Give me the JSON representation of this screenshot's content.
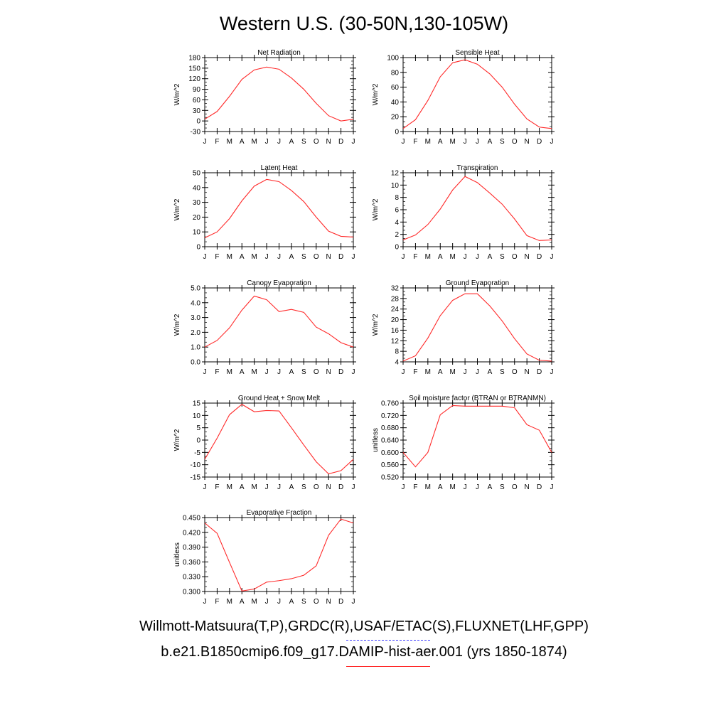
{
  "title": "Western U.S. (30-50N,130-105W)",
  "legend": {
    "obs_label": "Willmott-Matsuura(T,P),GRDC(R),USAF/ETAC(S),FLUXNET(LHF,GPP)",
    "model_label": "b.e21.B1850cmip6.f09_g17.DAMIP-hist-aer.001 (yrs 1850-1874)",
    "obs_color": "#3a3aff",
    "model_color": "#ff2a2a"
  },
  "chart_data": [
    {
      "type": "line",
      "title": "Net Radiation",
      "ylabel": "W/m^2",
      "categories": [
        "J",
        "F",
        "M",
        "A",
        "M",
        "J",
        "J",
        "A",
        "S",
        "O",
        "N",
        "D",
        "J"
      ],
      "ylim": [
        -30,
        180
      ],
      "yticks": [
        "-30",
        "0",
        "30",
        "60",
        "90",
        "120",
        "150",
        "180"
      ],
      "series": [
        {
          "values": [
            5,
            27,
            70,
            118,
            145,
            153,
            147,
            122,
            90,
            50,
            15,
            0,
            5
          ]
        }
      ]
    },
    {
      "type": "line",
      "title": "Sensible Heat",
      "ylabel": "W/m^2",
      "categories": [
        "J",
        "F",
        "M",
        "A",
        "M",
        "J",
        "J",
        "A",
        "S",
        "O",
        "N",
        "D",
        "J"
      ],
      "ylim": [
        0,
        100
      ],
      "yticks": [
        "0",
        "20",
        "40",
        "60",
        "80",
        "100"
      ],
      "series": [
        {
          "values": [
            4,
            16,
            42,
            74,
            93,
            97,
            91,
            78,
            60,
            37,
            17,
            6,
            4
          ]
        }
      ]
    },
    {
      "type": "line",
      "title": "Latent Heat",
      "ylabel": "W/m^2",
      "categories": [
        "J",
        "F",
        "M",
        "A",
        "M",
        "J",
        "J",
        "A",
        "S",
        "O",
        "N",
        "D",
        "J"
      ],
      "ylim": [
        0,
        50
      ],
      "yticks": [
        "0",
        "10",
        "20",
        "30",
        "40",
        "50"
      ],
      "series": [
        {
          "values": [
            6,
            10,
            19,
            31,
            41,
            45.5,
            44,
            38,
            30.5,
            20,
            10.5,
            7,
            6.5
          ]
        }
      ]
    },
    {
      "type": "line",
      "title": "Transpiration",
      "ylabel": "W/m^2",
      "categories": [
        "J",
        "F",
        "M",
        "A",
        "M",
        "J",
        "J",
        "A",
        "S",
        "O",
        "N",
        "D",
        "J"
      ],
      "ylim": [
        0,
        12
      ],
      "yticks": [
        "0",
        "2",
        "4",
        "6",
        "8",
        "10",
        "12"
      ],
      "series": [
        {
          "values": [
            1.1,
            1.9,
            3.6,
            6.1,
            9.2,
            11.4,
            10.4,
            8.7,
            6.9,
            4.5,
            1.8,
            1.0,
            1.1
          ]
        }
      ]
    },
    {
      "type": "line",
      "title": "Canopy Evaporation",
      "ylabel": "W/m^2",
      "categories": [
        "J",
        "F",
        "M",
        "A",
        "M",
        "J",
        "J",
        "A",
        "S",
        "O",
        "N",
        "D",
        "J"
      ],
      "ylim": [
        0,
        5
      ],
      "yticks": [
        "0.0",
        "1.0",
        "2.0",
        "3.0",
        "4.0",
        "5.0"
      ],
      "series": [
        {
          "values": [
            1.0,
            1.45,
            2.3,
            3.5,
            4.45,
            4.2,
            3.4,
            3.55,
            3.35,
            2.35,
            1.9,
            1.3,
            1.0
          ]
        }
      ]
    },
    {
      "type": "line",
      "title": "Ground Evaporation",
      "ylabel": "W/m^2",
      "categories": [
        "J",
        "F",
        "M",
        "A",
        "M",
        "J",
        "J",
        "A",
        "S",
        "O",
        "N",
        "D",
        "J"
      ],
      "ylim": [
        4,
        32
      ],
      "yticks": [
        "4",
        "8",
        "12",
        "16",
        "20",
        "24",
        "28",
        "32"
      ],
      "series": [
        {
          "values": [
            4.3,
            6.3,
            13,
            21.5,
            27.3,
            29.8,
            29.8,
            25.2,
            19.5,
            12.8,
            7,
            4.6,
            4.3
          ]
        }
      ]
    },
    {
      "type": "line",
      "title": "Ground Heat + Snow Melt",
      "ylabel": "W/m^2",
      "categories": [
        "J",
        "F",
        "M",
        "A",
        "M",
        "J",
        "J",
        "A",
        "S",
        "O",
        "N",
        "D",
        "J"
      ],
      "ylim": [
        -15,
        15
      ],
      "yticks": [
        "-15",
        "-10",
        "-5",
        "0",
        "5",
        "10",
        "15"
      ],
      "series": [
        {
          "values": [
            -7.8,
            0.8,
            10.3,
            14.5,
            11.5,
            12,
            11.8,
            5,
            -2,
            -8.8,
            -13.7,
            -12.4,
            -7.8
          ]
        }
      ]
    },
    {
      "type": "line",
      "title": "Soil moisture factor (BTRAN or BTRANMN)",
      "ylabel": "unitless",
      "categories": [
        "J",
        "F",
        "M",
        "A",
        "M",
        "J",
        "J",
        "A",
        "S",
        "O",
        "N",
        "D",
        "J"
      ],
      "ylim": [
        0.52,
        0.76
      ],
      "yticks": [
        "0.520",
        "0.560",
        "0.600",
        "0.640",
        "0.680",
        "0.720",
        "0.760"
      ],
      "series": [
        {
          "values": [
            0.6,
            0.553,
            0.6,
            0.722,
            0.752,
            0.75,
            0.75,
            0.75,
            0.75,
            0.745,
            0.69,
            0.672,
            0.6
          ]
        }
      ]
    },
    {
      "type": "line",
      "title": "Evaporative Fraction",
      "ylabel": "unitless",
      "categories": [
        "J",
        "F",
        "M",
        "A",
        "M",
        "J",
        "J",
        "A",
        "S",
        "O",
        "N",
        "D",
        "J"
      ],
      "ylim": [
        0.3,
        0.45
      ],
      "yticks": [
        "0.300",
        "0.330",
        "0.360",
        "0.390",
        "0.420",
        "0.450"
      ],
      "series": [
        {
          "values": [
            0.439,
            0.418,
            0.359,
            0.301,
            0.305,
            0.319,
            0.322,
            0.326,
            0.333,
            0.352,
            0.414,
            0.447,
            0.439
          ]
        }
      ]
    }
  ]
}
